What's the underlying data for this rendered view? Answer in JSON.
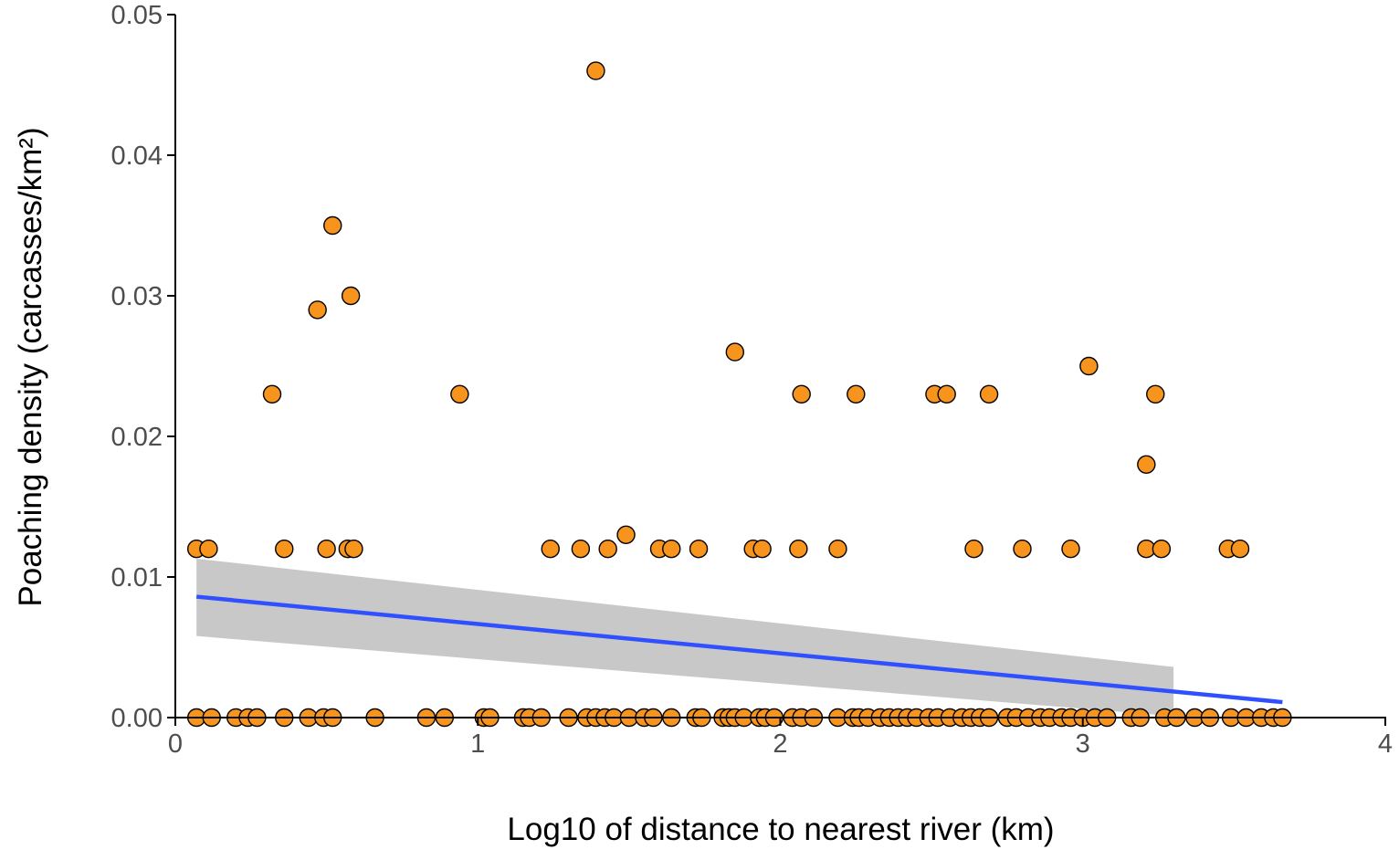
{
  "chart_data": {
    "type": "scatter",
    "title": "",
    "xlabel": "Log10 of distance to nearest river (km)",
    "ylabel": "Poaching density (carcasses/km²)",
    "xlim": [
      0,
      4
    ],
    "ylim": [
      0,
      0.05
    ],
    "x_ticks": [
      "0",
      "1",
      "2",
      "3",
      "4"
    ],
    "y_ticks": [
      "0.00",
      "0.01",
      "0.02",
      "0.03",
      "0.04",
      "0.05"
    ],
    "grid": false,
    "legend": "none",
    "colors": {
      "points_fill": "#F7941D",
      "points_stroke": "#000000",
      "trend_line": "#3050FF",
      "confidence_band": "#C8C8C8"
    },
    "points": [
      [
        1.39,
        0.046
      ],
      [
        0.52,
        0.035
      ],
      [
        0.47,
        0.029
      ],
      [
        0.58,
        0.03
      ],
      [
        0.32,
        0.023
      ],
      [
        0.94,
        0.023
      ],
      [
        2.07,
        0.023
      ],
      [
        2.25,
        0.023
      ],
      [
        2.51,
        0.023
      ],
      [
        2.55,
        0.023
      ],
      [
        2.69,
        0.023
      ],
      [
        3.24,
        0.023
      ],
      [
        1.85,
        0.026
      ],
      [
        3.02,
        0.025
      ],
      [
        3.21,
        0.018
      ],
      [
        1.49,
        0.013
      ],
      [
        0.07,
        0.012
      ],
      [
        0.11,
        0.012
      ],
      [
        0.36,
        0.012
      ],
      [
        0.5,
        0.012
      ],
      [
        0.57,
        0.012
      ],
      [
        0.59,
        0.012
      ],
      [
        1.24,
        0.012
      ],
      [
        1.34,
        0.012
      ],
      [
        1.43,
        0.012
      ],
      [
        1.6,
        0.012
      ],
      [
        1.64,
        0.012
      ],
      [
        1.73,
        0.012
      ],
      [
        1.91,
        0.012
      ],
      [
        1.94,
        0.012
      ],
      [
        2.06,
        0.012
      ],
      [
        2.19,
        0.012
      ],
      [
        2.64,
        0.012
      ],
      [
        2.8,
        0.012
      ],
      [
        2.96,
        0.012
      ],
      [
        3.21,
        0.012
      ],
      [
        3.26,
        0.012
      ],
      [
        3.48,
        0.012
      ],
      [
        3.52,
        0.012
      ],
      [
        0.07,
        0
      ],
      [
        0.12,
        0
      ],
      [
        0.2,
        0
      ],
      [
        0.24,
        0
      ],
      [
        0.27,
        0
      ],
      [
        0.36,
        0
      ],
      [
        0.44,
        0
      ],
      [
        0.49,
        0
      ],
      [
        0.52,
        0
      ],
      [
        0.66,
        0
      ],
      [
        0.83,
        0
      ],
      [
        0.89,
        0
      ],
      [
        1.02,
        0
      ],
      [
        1.04,
        0
      ],
      [
        1.15,
        0
      ],
      [
        1.17,
        0
      ],
      [
        1.21,
        0
      ],
      [
        1.3,
        0
      ],
      [
        1.36,
        0
      ],
      [
        1.39,
        0
      ],
      [
        1.42,
        0
      ],
      [
        1.45,
        0
      ],
      [
        1.5,
        0
      ],
      [
        1.55,
        0
      ],
      [
        1.58,
        0
      ],
      [
        1.64,
        0
      ],
      [
        1.72,
        0
      ],
      [
        1.74,
        0
      ],
      [
        1.81,
        0
      ],
      [
        1.83,
        0
      ],
      [
        1.85,
        0
      ],
      [
        1.88,
        0
      ],
      [
        1.93,
        0
      ],
      [
        1.95,
        0
      ],
      [
        1.98,
        0
      ],
      [
        2.04,
        0
      ],
      [
        2.07,
        0
      ],
      [
        2.11,
        0
      ],
      [
        2.19,
        0
      ],
      [
        2.24,
        0
      ],
      [
        2.26,
        0
      ],
      [
        2.29,
        0
      ],
      [
        2.33,
        0
      ],
      [
        2.36,
        0
      ],
      [
        2.39,
        0
      ],
      [
        2.42,
        0
      ],
      [
        2.45,
        0
      ],
      [
        2.49,
        0
      ],
      [
        2.52,
        0
      ],
      [
        2.56,
        0
      ],
      [
        2.6,
        0
      ],
      [
        2.63,
        0
      ],
      [
        2.66,
        0
      ],
      [
        2.69,
        0
      ],
      [
        2.75,
        0
      ],
      [
        2.78,
        0
      ],
      [
        2.82,
        0
      ],
      [
        2.86,
        0
      ],
      [
        2.89,
        0
      ],
      [
        2.93,
        0
      ],
      [
        2.96,
        0
      ],
      [
        3.0,
        0
      ],
      [
        3.04,
        0
      ],
      [
        3.08,
        0
      ],
      [
        3.16,
        0
      ],
      [
        3.19,
        0
      ],
      [
        3.27,
        0
      ],
      [
        3.31,
        0
      ],
      [
        3.37,
        0
      ],
      [
        3.42,
        0
      ],
      [
        3.49,
        0
      ],
      [
        3.54,
        0
      ],
      [
        3.59,
        0
      ],
      [
        3.63,
        0
      ],
      [
        3.66,
        0
      ]
    ],
    "trend_line": {
      "x": [
        0.07,
        3.66
      ],
      "y": [
        0.0086,
        0.0011
      ]
    },
    "confidence_band": {
      "x": [
        0.07,
        3.3
      ],
      "upper": [
        0.0113,
        0.0036
      ],
      "lower": [
        0.0058,
        0.0001
      ]
    }
  }
}
